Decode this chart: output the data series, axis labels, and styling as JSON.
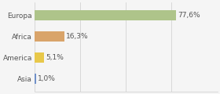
{
  "categories": [
    "Europa",
    "Africa",
    "America",
    "Asia"
  ],
  "values": [
    77.6,
    16.3,
    5.1,
    1.0
  ],
  "labels": [
    "77,6%",
    "16,3%",
    "5,1%",
    "1,0%"
  ],
  "bar_colors": [
    "#aec48a",
    "#d9a46a",
    "#e8c84a",
    "#7090c8"
  ],
  "background_color": "#f5f5f5",
  "xlim": [
    0,
    100
  ],
  "bar_height": 0.5,
  "label_fontsize": 6.5,
  "tick_fontsize": 6.5,
  "grid_xticks": [
    0,
    25,
    50,
    75,
    100
  ],
  "grid_color": "#cccccc"
}
